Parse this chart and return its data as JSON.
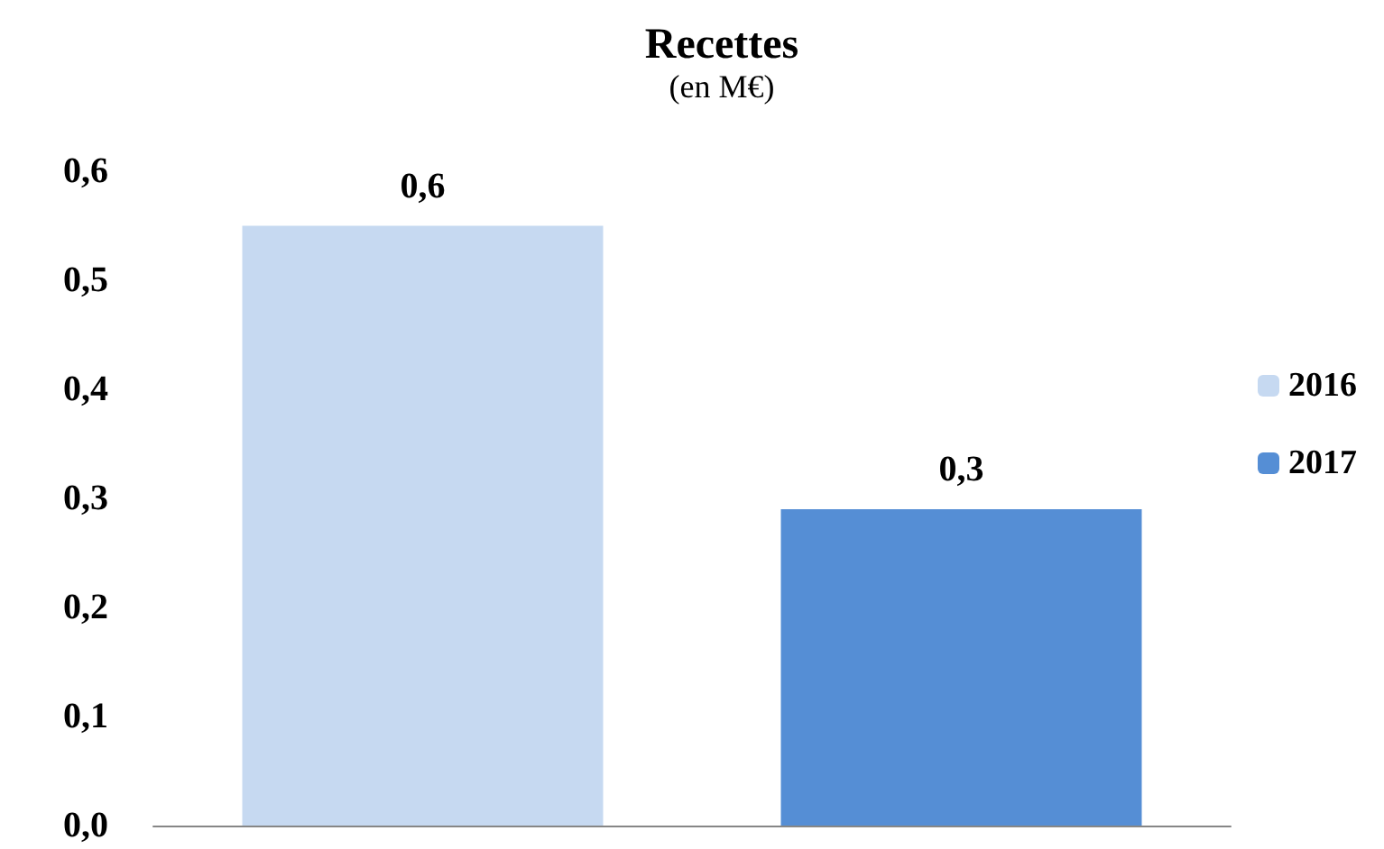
{
  "chart_data": {
    "type": "bar",
    "title": "Recettes",
    "subtitle": "(en M€)",
    "categories": [
      null,
      null
    ],
    "series": [
      {
        "name": "2016",
        "color": "#c6d9f1",
        "values": [
          0.55,
          null
        ],
        "value_labels": [
          "0,6",
          null
        ]
      },
      {
        "name": "2017",
        "color": "#558ed5",
        "values": [
          null,
          0.29
        ],
        "value_labels": [
          null,
          "0,3"
        ]
      }
    ],
    "ylim": [
      0,
      0.6
    ],
    "yticks": [
      {
        "value": 0,
        "label": "0,0"
      },
      {
        "value": 0.1,
        "label": "0,1"
      },
      {
        "value": 0.2,
        "label": "0,2"
      },
      {
        "value": 0.3,
        "label": "0,3"
      },
      {
        "value": 0.4,
        "label": "0,4"
      },
      {
        "value": 0.5,
        "label": "0,5"
      },
      {
        "value": 0.6,
        "label": "0,6"
      }
    ],
    "legend": "right"
  }
}
